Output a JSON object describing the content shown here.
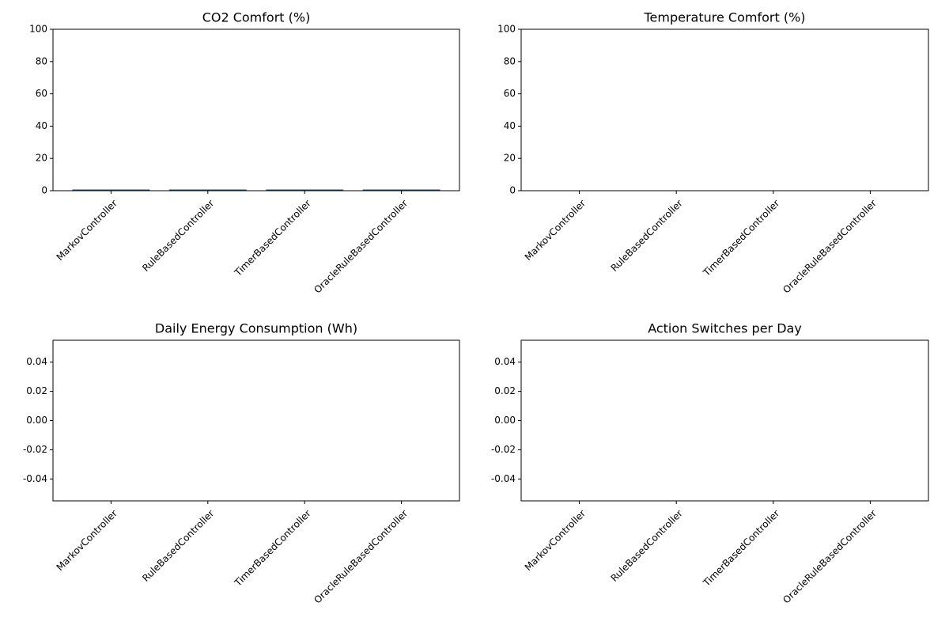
{
  "chart_data": [
    {
      "type": "bar",
      "title": "CO2 Comfort (%)",
      "categories": [
        "MarkovController",
        "RuleBasedController",
        "TimerBasedController",
        "OracleRuleBasedController"
      ],
      "values": [
        0,
        0,
        0,
        0
      ],
      "color": "#1f4e79",
      "ylim": [
        0,
        100
      ],
      "yticks": [
        0,
        20,
        40,
        60,
        80,
        100
      ]
    },
    {
      "type": "bar",
      "title": "Temperature Comfort (%)",
      "categories": [
        "MarkovController",
        "RuleBasedController",
        "TimerBasedController",
        "OracleRuleBasedController"
      ],
      "values": [
        0,
        0,
        0,
        0
      ],
      "ylim": [
        0,
        100
      ],
      "yticks": [
        0,
        20,
        40,
        60,
        80,
        100
      ]
    },
    {
      "type": "bar",
      "title": "Daily Energy Consumption (Wh)",
      "categories": [
        "MarkovController",
        "RuleBasedController",
        "TimerBasedController",
        "OracleRuleBasedController"
      ],
      "values": [
        0,
        0,
        0,
        0
      ],
      "ylim": [
        -0.055,
        0.055
      ],
      "yticks": [
        -0.04,
        -0.02,
        {
          "value": 0,
          "label": "0.00"
        },
        0.02,
        0.04
      ]
    },
    {
      "type": "bar",
      "title": "Action Switches per Day",
      "categories": [
        "MarkovController",
        "RuleBasedController",
        "TimerBasedController",
        "OracleRuleBasedController"
      ],
      "values": [
        0,
        0,
        0,
        0
      ],
      "ylim": [
        -0.055,
        0.055
      ],
      "yticks": [
        -0.04,
        -0.02,
        {
          "value": 0,
          "label": "0.00"
        },
        0.02,
        0.04
      ]
    }
  ]
}
